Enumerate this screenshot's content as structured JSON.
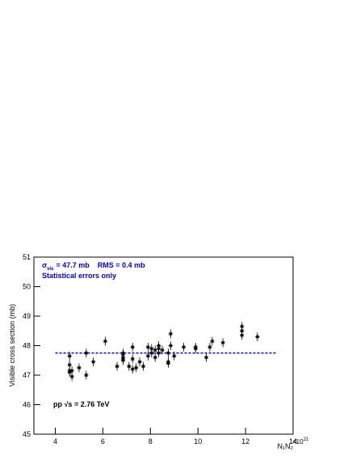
{
  "chart_data": {
    "type": "scatter",
    "ylabel": "Visible cross section (mb)",
    "xlabel": "N₁N₂",
    "x_multiplier": {
      "base": "×10",
      "exponent": "21"
    },
    "annotations": {
      "sigma": "σ",
      "sigma_sub": "vis",
      "sigma_text": "= 47.7 mb",
      "rms": "RMS = 0.4 mb",
      "errors_note": "Statistical errors only",
      "energy": "pp √s = 2.76 TeV"
    },
    "reference_line": {
      "value": 47.75,
      "x": [
        4.0,
        13.3
      ],
      "color": "#0000ee"
    },
    "xlim": [
      3.1,
      14
    ],
    "xticks": [
      4,
      6,
      8,
      10,
      12,
      14
    ],
    "ylim": [
      45,
      51
    ],
    "yticks": [
      45,
      46,
      47,
      48,
      49,
      50,
      51
    ],
    "series": [
      {
        "color": "#000000",
        "x": [
          4.6,
          4.6,
          4.6,
          4.6,
          4.7,
          4.7,
          5.0,
          5.3,
          5.3,
          5.6,
          6.1,
          6.6,
          6.85,
          6.85,
          6.85,
          6.85,
          6.85,
          7.1,
          7.25,
          7.25,
          7.25,
          7.4,
          7.55,
          7.7,
          7.9,
          7.9,
          8.05,
          8.05,
          8.2,
          8.2,
          8.35,
          8.35,
          8.35,
          8.5,
          8.75,
          8.75,
          8.75,
          8.85,
          8.85,
          9.0,
          9.4,
          9.9,
          9.9,
          10.35,
          10.5,
          10.6,
          11.05,
          11.85,
          11.85,
          11.85,
          12.5
        ],
        "values": [
          47.15,
          47.1,
          47.65,
          47.35,
          46.95,
          47.15,
          47.25,
          47.0,
          47.75,
          47.45,
          48.15,
          47.3,
          47.7,
          47.6,
          47.5,
          47.75,
          47.55,
          47.3,
          47.2,
          47.95,
          47.55,
          47.25,
          47.45,
          47.3,
          47.95,
          47.65,
          47.75,
          47.9,
          47.6,
          47.85,
          47.9,
          47.75,
          48.0,
          47.85,
          47.45,
          47.4,
          47.75,
          48.4,
          48.0,
          47.65,
          47.95,
          47.9,
          47.95,
          47.6,
          47.95,
          48.15,
          48.1,
          48.65,
          48.5,
          48.35,
          48.3
        ],
        "errors": [
          0.15,
          0.15,
          0.15,
          0.15,
          0.15,
          0.15,
          0.15,
          0.15,
          0.15,
          0.15,
          0.15,
          0.15,
          0.15,
          0.15,
          0.15,
          0.15,
          0.15,
          0.15,
          0.15,
          0.15,
          0.15,
          0.15,
          0.15,
          0.15,
          0.15,
          0.15,
          0.15,
          0.15,
          0.15,
          0.15,
          0.15,
          0.15,
          0.15,
          0.15,
          0.15,
          0.15,
          0.15,
          0.15,
          0.15,
          0.15,
          0.15,
          0.15,
          0.15,
          0.15,
          0.15,
          0.15,
          0.15,
          0.15,
          0.15,
          0.15,
          0.15
        ]
      }
    ]
  }
}
